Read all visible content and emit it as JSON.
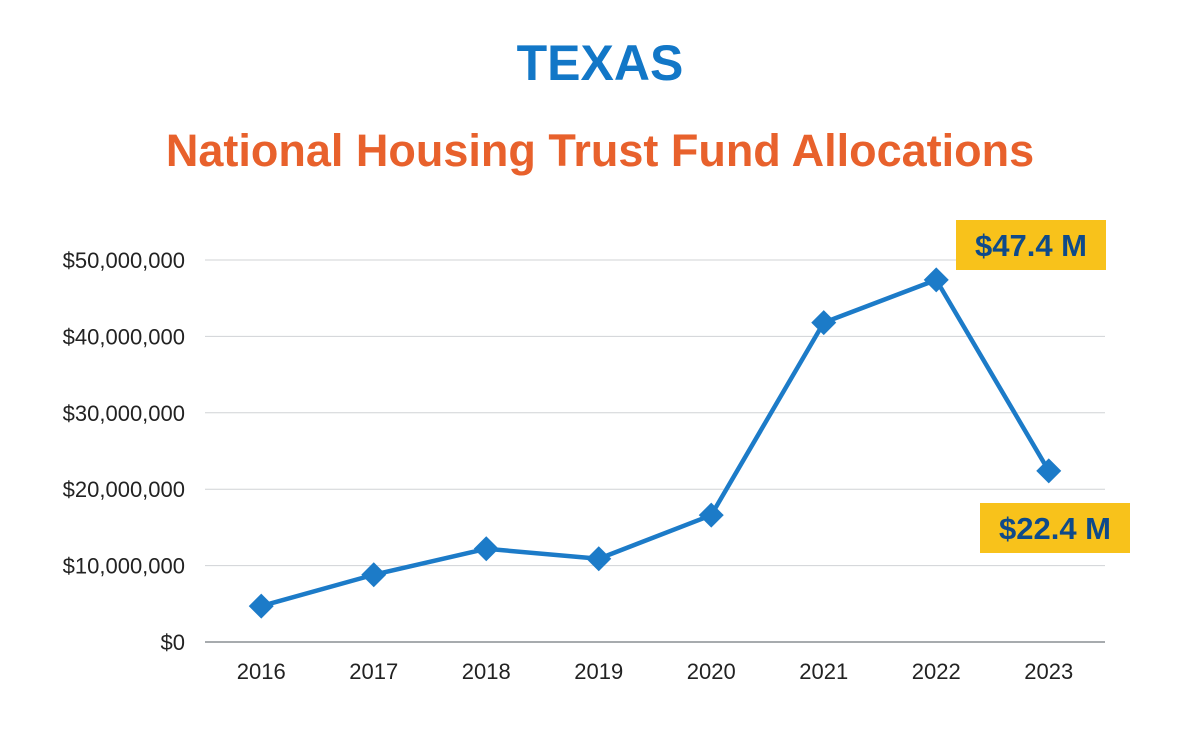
{
  "colors": {
    "title": "#1277c7",
    "subtitle": "#e8612c",
    "line": "#1c7bc8",
    "grid": "#d0d3d6",
    "axis": "#8a8f94",
    "callout_bg": "#f8c21b",
    "callout_text": "#0e4a8a"
  },
  "chart_data": {
    "type": "line",
    "title": "TEXAS",
    "subtitle": "National Housing Trust Fund Allocations",
    "categories": [
      "2016",
      "2017",
      "2018",
      "2019",
      "2020",
      "2021",
      "2022",
      "2023"
    ],
    "series": [
      {
        "values": [
          4700000,
          8800000,
          12200000,
          10900000,
          16600000,
          41800000,
          47400000,
          22400000
        ],
        "marker": "diamond"
      }
    ],
    "ylim": [
      0,
      50000000
    ],
    "yticks": [
      0,
      10000000,
      20000000,
      30000000,
      40000000,
      50000000
    ],
    "ytick_labels": [
      "$0",
      "$10,000,000",
      "$20,000,000",
      "$30,000,000",
      "$40,000,000",
      "$50,000,000"
    ],
    "xlabel": "",
    "ylabel": "",
    "grid": true,
    "legend": "none",
    "annotations": [
      {
        "text": "$47.4 M",
        "category": "2022",
        "position": "above-right"
      },
      {
        "text": "$22.4 M",
        "category": "2023",
        "position": "below"
      }
    ]
  }
}
